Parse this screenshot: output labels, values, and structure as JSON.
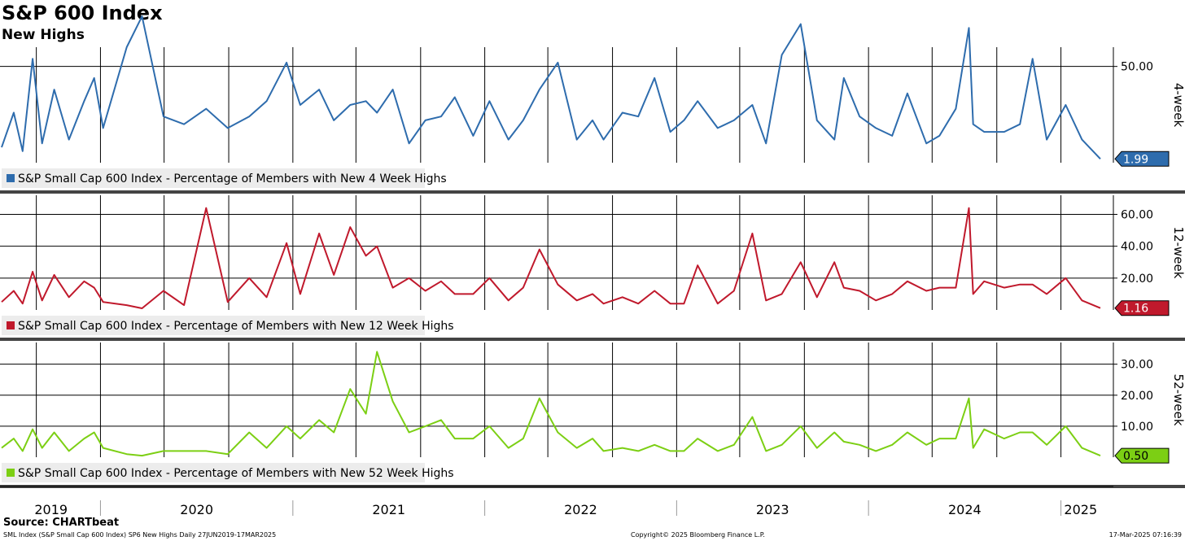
{
  "header": {
    "title": "S&P 600 Index",
    "subtitle": "New Highs"
  },
  "source": "Source: CHARTbeat",
  "footer": {
    "left": "SML Index (S&P Small Cap 600 Index) SP6 New Highs  Daily 27JUN2019-17MAR2025",
    "center": "Copyright© 2025 Bloomberg Finance L.P.",
    "right": "17-Mar-2025 07:16:39"
  },
  "colors": {
    "four_week": "#2e6cad",
    "twelve_week": "#c0192c",
    "fifty_two_week": "#7ccf14"
  },
  "chart_data": [
    {
      "type": "line",
      "panel_label": "4-week",
      "legend": "S&P Small Cap 600 Index - Percentage of Members with New 4 Week Highs",
      "last_value": "1.99",
      "ylim": [
        0,
        60
      ],
      "yticks": [
        50
      ],
      "ytick_labels": [
        "50.00"
      ],
      "x": [
        "2019-06-27",
        "2019-07-20",
        "2019-08-06",
        "2019-08-25",
        "2019-09-12",
        "2019-10-05",
        "2019-11-02",
        "2019-12-01",
        "2019-12-20",
        "2020-01-06",
        "2020-02-20",
        "2020-03-20",
        "2020-04-30",
        "2020-06-08",
        "2020-07-20",
        "2020-08-30",
        "2020-10-10",
        "2020-11-12",
        "2020-12-20",
        "2021-01-15",
        "2021-02-20",
        "2021-03-20",
        "2021-04-20",
        "2021-05-20",
        "2021-06-10",
        "2021-07-10",
        "2021-08-10",
        "2021-09-10",
        "2021-10-10",
        "2021-11-05",
        "2021-12-10",
        "2022-01-10",
        "2022-02-15",
        "2022-03-15",
        "2022-04-15",
        "2022-05-20",
        "2022-06-25",
        "2022-07-25",
        "2022-08-15",
        "2022-09-20",
        "2022-10-20",
        "2022-11-20",
        "2022-12-20",
        "2023-01-15",
        "2023-02-10",
        "2023-03-20",
        "2023-04-20",
        "2023-05-25",
        "2023-06-20",
        "2023-07-20",
        "2023-08-25",
        "2023-09-25",
        "2023-10-28",
        "2023-11-15",
        "2023-12-15",
        "2024-01-15",
        "2024-02-15",
        "2024-03-15",
        "2024-04-20",
        "2024-05-15",
        "2024-06-15",
        "2024-07-10",
        "2024-07-18",
        "2024-08-08",
        "2024-09-15",
        "2024-10-15",
        "2024-11-08",
        "2024-12-05",
        "2025-01-10",
        "2025-02-10",
        "2025-03-17"
      ],
      "y": [
        8,
        26,
        6,
        54,
        10,
        38,
        12,
        32,
        44,
        18,
        60,
        76,
        24,
        20,
        28,
        18,
        24,
        32,
        52,
        30,
        38,
        22,
        30,
        32,
        26,
        38,
        10,
        22,
        24,
        34,
        14,
        32,
        12,
        22,
        38,
        52,
        12,
        22,
        12,
        26,
        24,
        44,
        16,
        22,
        32,
        18,
        22,
        30,
        10,
        56,
        72,
        22,
        12,
        44,
        24,
        18,
        14,
        36,
        10,
        14,
        28,
        70,
        20,
        16,
        16,
        20,
        54,
        12,
        30,
        12,
        1.99
      ]
    },
    {
      "type": "line",
      "panel_label": "12-week",
      "legend": "S&P Small Cap 600 Index - Percentage of Members with New 12 Week Highs",
      "last_value": "1.16",
      "ylim": [
        0,
        72
      ],
      "yticks": [
        20,
        40,
        60
      ],
      "ytick_labels": [
        "20.00",
        "40.00",
        "60.00"
      ],
      "x": [
        "2019-06-27",
        "2019-07-20",
        "2019-08-06",
        "2019-08-25",
        "2019-09-12",
        "2019-10-05",
        "2019-11-02",
        "2019-12-01",
        "2019-12-20",
        "2020-01-06",
        "2020-02-20",
        "2020-03-20",
        "2020-04-30",
        "2020-06-08",
        "2020-07-20",
        "2020-08-30",
        "2020-10-10",
        "2020-11-12",
        "2020-12-20",
        "2021-01-15",
        "2021-02-20",
        "2021-03-20",
        "2021-04-20",
        "2021-05-20",
        "2021-06-10",
        "2021-07-10",
        "2021-08-10",
        "2021-09-10",
        "2021-10-10",
        "2021-11-05",
        "2021-12-10",
        "2022-01-10",
        "2022-02-15",
        "2022-03-15",
        "2022-04-15",
        "2022-05-20",
        "2022-06-25",
        "2022-07-25",
        "2022-08-15",
        "2022-09-20",
        "2022-10-20",
        "2022-11-20",
        "2022-12-20",
        "2023-01-15",
        "2023-02-10",
        "2023-03-20",
        "2023-04-20",
        "2023-05-25",
        "2023-06-20",
        "2023-07-20",
        "2023-08-25",
        "2023-09-25",
        "2023-10-28",
        "2023-11-15",
        "2023-12-15",
        "2024-01-15",
        "2024-02-15",
        "2024-03-15",
        "2024-04-20",
        "2024-05-15",
        "2024-06-15",
        "2024-07-10",
        "2024-07-18",
        "2024-08-08",
        "2024-09-15",
        "2024-10-15",
        "2024-11-08",
        "2024-12-05",
        "2025-01-10",
        "2025-02-10",
        "2025-03-17"
      ],
      "y": [
        5,
        12,
        4,
        24,
        6,
        22,
        8,
        18,
        14,
        5,
        3,
        1,
        12,
        3,
        64,
        5,
        20,
        8,
        42,
        10,
        48,
        22,
        52,
        34,
        40,
        14,
        20,
        12,
        18,
        10,
        10,
        20,
        6,
        14,
        38,
        16,
        6,
        10,
        4,
        8,
        4,
        12,
        4,
        4,
        28,
        4,
        12,
        48,
        6,
        10,
        30,
        8,
        30,
        14,
        12,
        6,
        10,
        18,
        12,
        14,
        14,
        64,
        10,
        18,
        14,
        16,
        16,
        10,
        20,
        6,
        1.16
      ]
    },
    {
      "type": "line",
      "panel_label": "52-week",
      "legend": "S&P Small Cap 600 Index - Percentage of Members with New 52 Week Highs",
      "last_value": "0.50",
      "ylim": [
        0,
        37
      ],
      "yticks": [
        10,
        20,
        30
      ],
      "ytick_labels": [
        "10.00",
        "20.00",
        "30.00"
      ],
      "x": [
        "2019-06-27",
        "2019-07-20",
        "2019-08-06",
        "2019-08-25",
        "2019-09-12",
        "2019-10-05",
        "2019-11-02",
        "2019-12-01",
        "2019-12-20",
        "2020-01-06",
        "2020-02-20",
        "2020-03-20",
        "2020-04-30",
        "2020-06-08",
        "2020-07-20",
        "2020-08-30",
        "2020-10-10",
        "2020-11-12",
        "2020-12-20",
        "2021-01-15",
        "2021-02-20",
        "2021-03-20",
        "2021-04-20",
        "2021-05-20",
        "2021-06-10",
        "2021-07-10",
        "2021-08-10",
        "2021-09-10",
        "2021-10-10",
        "2021-11-05",
        "2021-12-10",
        "2022-01-10",
        "2022-02-15",
        "2022-03-15",
        "2022-04-15",
        "2022-05-20",
        "2022-06-25",
        "2022-07-25",
        "2022-08-15",
        "2022-09-20",
        "2022-10-20",
        "2022-11-20",
        "2022-12-20",
        "2023-01-15",
        "2023-02-10",
        "2023-03-20",
        "2023-04-20",
        "2023-05-25",
        "2023-06-20",
        "2023-07-20",
        "2023-08-25",
        "2023-09-25",
        "2023-10-28",
        "2023-11-15",
        "2023-12-15",
        "2024-01-15",
        "2024-02-15",
        "2024-03-15",
        "2024-04-20",
        "2024-05-15",
        "2024-06-15",
        "2024-07-10",
        "2024-07-18",
        "2024-08-08",
        "2024-09-15",
        "2024-10-15",
        "2024-11-08",
        "2024-12-05",
        "2025-01-10",
        "2025-02-10",
        "2025-03-17"
      ],
      "y": [
        3,
        6,
        2,
        9,
        3,
        8,
        2,
        6,
        8,
        3,
        1,
        0.5,
        2,
        2,
        2,
        1,
        8,
        3,
        10,
        6,
        12,
        8,
        22,
        14,
        34,
        18,
        8,
        10,
        12,
        6,
        6,
        10,
        3,
        6,
        19,
        8,
        3,
        6,
        2,
        3,
        2,
        4,
        2,
        2,
        6,
        2,
        4,
        13,
        2,
        4,
        10,
        3,
        8,
        5,
        4,
        2,
        4,
        8,
        4,
        6,
        6,
        19,
        3,
        9,
        6,
        8,
        8,
        4,
        10,
        3,
        0.5
      ]
    }
  ],
  "x_axis": {
    "labels": [
      "2019",
      "2020",
      "2021",
      "2022",
      "2023",
      "2024",
      "2025"
    ]
  }
}
